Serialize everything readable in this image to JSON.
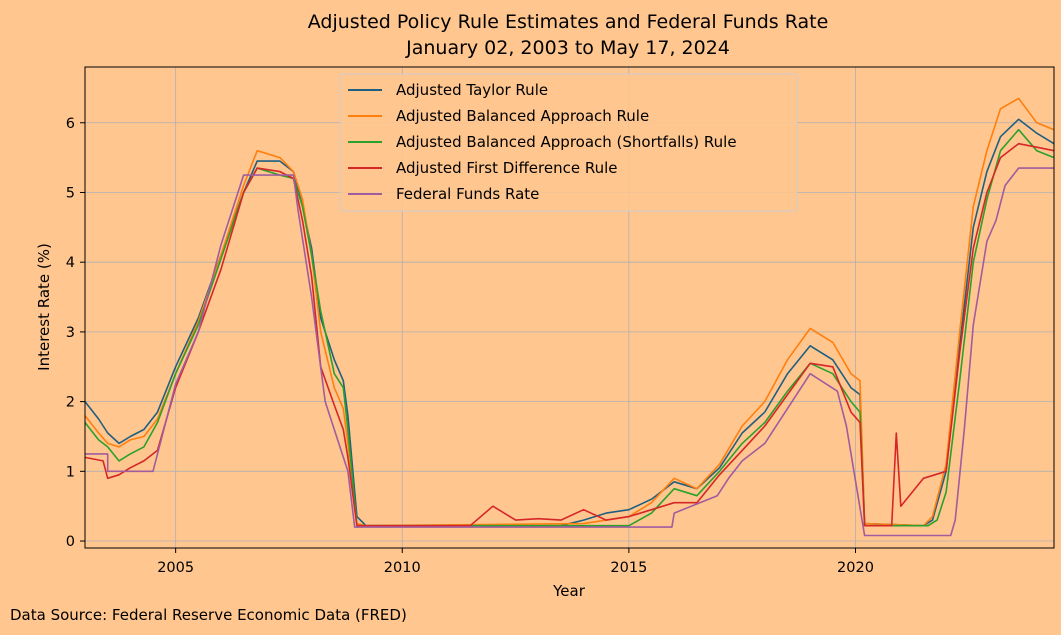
{
  "chart_data": {
    "type": "line",
    "title": "Adjusted Policy Rule Estimates and Federal Funds Rate",
    "subtitle": "January 02, 2003 to May 17, 2024",
    "xlabel": "Year",
    "ylabel": "Interest Rate (%)",
    "xlim": [
      2003.0,
      2024.38
    ],
    "ylim": [
      -0.1,
      6.8
    ],
    "x_ticks": [
      2005,
      2010,
      2015,
      2020
    ],
    "y_ticks": [
      0,
      1,
      2,
      3,
      4,
      5,
      6
    ],
    "grid": true,
    "legend_position": "top-center",
    "background_color": "#ffc68f",
    "series": [
      {
        "name": "Adjusted Taylor Rule",
        "color": "#1f5f80",
        "points": [
          [
            2003.0,
            2.0
          ],
          [
            2003.3,
            1.75
          ],
          [
            2003.5,
            1.55
          ],
          [
            2003.75,
            1.4
          ],
          [
            2004.0,
            1.5
          ],
          [
            2004.3,
            1.6
          ],
          [
            2004.6,
            1.85
          ],
          [
            2005.0,
            2.5
          ],
          [
            2005.5,
            3.2
          ],
          [
            2006.0,
            4.1
          ],
          [
            2006.5,
            5.0
          ],
          [
            2006.8,
            5.45
          ],
          [
            2007.3,
            5.45
          ],
          [
            2007.6,
            5.3
          ],
          [
            2007.8,
            4.8
          ],
          [
            2008.0,
            4.2
          ],
          [
            2008.2,
            3.2
          ],
          [
            2008.5,
            2.6
          ],
          [
            2008.7,
            2.3
          ],
          [
            2008.8,
            1.8
          ],
          [
            2009.0,
            0.35
          ],
          [
            2009.2,
            0.22
          ],
          [
            2013.5,
            0.22
          ],
          [
            2014.0,
            0.3
          ],
          [
            2014.5,
            0.4
          ],
          [
            2015.0,
            0.45
          ],
          [
            2015.5,
            0.6
          ],
          [
            2016.0,
            0.85
          ],
          [
            2016.5,
            0.75
          ],
          [
            2017.0,
            1.05
          ],
          [
            2017.5,
            1.55
          ],
          [
            2018.0,
            1.85
          ],
          [
            2018.5,
            2.4
          ],
          [
            2019.0,
            2.8
          ],
          [
            2019.5,
            2.6
          ],
          [
            2019.9,
            2.2
          ],
          [
            2020.1,
            2.1
          ],
          [
            2020.2,
            0.25
          ],
          [
            2021.5,
            0.22
          ],
          [
            2021.7,
            0.3
          ],
          [
            2022.0,
            1.0
          ],
          [
            2022.3,
            2.8
          ],
          [
            2022.6,
            4.5
          ],
          [
            2022.9,
            5.3
          ],
          [
            2023.2,
            5.8
          ],
          [
            2023.6,
            6.05
          ],
          [
            2024.0,
            5.85
          ],
          [
            2024.38,
            5.7
          ]
        ]
      },
      {
        "name": "Adjusted Balanced Approach Rule",
        "color": "#ff7f0e",
        "points": [
          [
            2003.0,
            1.8
          ],
          [
            2003.3,
            1.55
          ],
          [
            2003.5,
            1.4
          ],
          [
            2003.75,
            1.35
          ],
          [
            2004.0,
            1.45
          ],
          [
            2004.3,
            1.5
          ],
          [
            2004.6,
            1.75
          ],
          [
            2005.0,
            2.4
          ],
          [
            2005.5,
            3.15
          ],
          [
            2006.0,
            4.1
          ],
          [
            2006.5,
            5.1
          ],
          [
            2006.8,
            5.6
          ],
          [
            2007.3,
            5.5
          ],
          [
            2007.6,
            5.3
          ],
          [
            2007.8,
            4.9
          ],
          [
            2008.0,
            4.1
          ],
          [
            2008.2,
            3.0
          ],
          [
            2008.5,
            2.2
          ],
          [
            2008.7,
            1.9
          ],
          [
            2008.8,
            1.4
          ],
          [
            2009.0,
            0.25
          ],
          [
            2009.2,
            0.22
          ],
          [
            2014.0,
            0.25
          ],
          [
            2014.5,
            0.3
          ],
          [
            2015.0,
            0.35
          ],
          [
            2015.5,
            0.55
          ],
          [
            2016.0,
            0.9
          ],
          [
            2016.5,
            0.75
          ],
          [
            2017.0,
            1.1
          ],
          [
            2017.5,
            1.65
          ],
          [
            2018.0,
            2.0
          ],
          [
            2018.5,
            2.6
          ],
          [
            2019.0,
            3.05
          ],
          [
            2019.5,
            2.85
          ],
          [
            2019.9,
            2.4
          ],
          [
            2020.1,
            2.3
          ],
          [
            2020.2,
            0.25
          ],
          [
            2021.5,
            0.22
          ],
          [
            2021.7,
            0.35
          ],
          [
            2022.0,
            1.1
          ],
          [
            2022.3,
            3.0
          ],
          [
            2022.6,
            4.8
          ],
          [
            2022.9,
            5.6
          ],
          [
            2023.2,
            6.2
          ],
          [
            2023.6,
            6.35
          ],
          [
            2024.0,
            6.0
          ],
          [
            2024.38,
            5.9
          ]
        ]
      },
      {
        "name": "Adjusted Balanced Approach (Shortfalls) Rule",
        "color": "#2ca02c",
        "points": [
          [
            2003.0,
            1.7
          ],
          [
            2003.3,
            1.45
          ],
          [
            2003.5,
            1.35
          ],
          [
            2003.75,
            1.15
          ],
          [
            2004.0,
            1.25
          ],
          [
            2004.3,
            1.35
          ],
          [
            2004.6,
            1.7
          ],
          [
            2005.0,
            2.4
          ],
          [
            2005.5,
            3.1
          ],
          [
            2006.0,
            4.05
          ],
          [
            2006.5,
            5.0
          ],
          [
            2006.8,
            5.35
          ],
          [
            2007.3,
            5.25
          ],
          [
            2007.6,
            5.2
          ],
          [
            2007.8,
            4.8
          ],
          [
            2008.0,
            4.1
          ],
          [
            2008.2,
            3.3
          ],
          [
            2008.5,
            2.4
          ],
          [
            2008.7,
            2.2
          ],
          [
            2008.8,
            1.6
          ],
          [
            2009.0,
            0.22
          ],
          [
            2015.0,
            0.22
          ],
          [
            2015.5,
            0.4
          ],
          [
            2016.0,
            0.75
          ],
          [
            2016.5,
            0.65
          ],
          [
            2017.0,
            1.0
          ],
          [
            2017.5,
            1.4
          ],
          [
            2018.0,
            1.7
          ],
          [
            2018.5,
            2.15
          ],
          [
            2019.0,
            2.55
          ],
          [
            2019.5,
            2.4
          ],
          [
            2019.9,
            2.0
          ],
          [
            2020.1,
            1.85
          ],
          [
            2020.2,
            0.22
          ],
          [
            2021.6,
            0.22
          ],
          [
            2021.8,
            0.3
          ],
          [
            2022.0,
            0.7
          ],
          [
            2022.3,
            2.3
          ],
          [
            2022.6,
            4.0
          ],
          [
            2022.9,
            4.9
          ],
          [
            2023.2,
            5.6
          ],
          [
            2023.6,
            5.9
          ],
          [
            2024.0,
            5.6
          ],
          [
            2024.38,
            5.5
          ]
        ]
      },
      {
        "name": "Adjusted First Difference Rule",
        "color": "#d62728",
        "points": [
          [
            2003.0,
            1.2
          ],
          [
            2003.4,
            1.15
          ],
          [
            2003.5,
            0.9
          ],
          [
            2003.75,
            0.95
          ],
          [
            2004.0,
            1.05
          ],
          [
            2004.3,
            1.15
          ],
          [
            2004.6,
            1.3
          ],
          [
            2005.0,
            2.2
          ],
          [
            2005.5,
            3.0
          ],
          [
            2006.0,
            3.9
          ],
          [
            2006.5,
            5.0
          ],
          [
            2006.8,
            5.35
          ],
          [
            2007.3,
            5.3
          ],
          [
            2007.6,
            5.2
          ],
          [
            2007.8,
            4.6
          ],
          [
            2008.0,
            3.8
          ],
          [
            2008.2,
            2.5
          ],
          [
            2008.5,
            1.95
          ],
          [
            2008.7,
            1.6
          ],
          [
            2008.8,
            1.2
          ],
          [
            2009.0,
            0.22
          ],
          [
            2011.5,
            0.22
          ],
          [
            2012.0,
            0.5
          ],
          [
            2012.5,
            0.3
          ],
          [
            2013.0,
            0.32
          ],
          [
            2013.5,
            0.3
          ],
          [
            2014.0,
            0.45
          ],
          [
            2014.5,
            0.3
          ],
          [
            2015.0,
            0.35
          ],
          [
            2015.5,
            0.45
          ],
          [
            2016.0,
            0.55
          ],
          [
            2016.5,
            0.55
          ],
          [
            2017.0,
            0.95
          ],
          [
            2017.5,
            1.3
          ],
          [
            2018.0,
            1.65
          ],
          [
            2018.5,
            2.1
          ],
          [
            2019.0,
            2.55
          ],
          [
            2019.5,
            2.5
          ],
          [
            2019.9,
            1.85
          ],
          [
            2020.1,
            1.7
          ],
          [
            2020.2,
            0.22
          ],
          [
            2020.8,
            0.22
          ],
          [
            2020.9,
            1.55
          ],
          [
            2021.0,
            0.5
          ],
          [
            2021.5,
            0.9
          ],
          [
            2022.0,
            1.0
          ],
          [
            2022.3,
            2.7
          ],
          [
            2022.6,
            4.2
          ],
          [
            2022.9,
            5.0
          ],
          [
            2023.2,
            5.5
          ],
          [
            2023.6,
            5.7
          ],
          [
            2024.0,
            5.65
          ],
          [
            2024.38,
            5.6
          ]
        ]
      },
      {
        "name": "Federal Funds Rate",
        "color": "#a05c9f",
        "points": [
          [
            2003.0,
            1.25
          ],
          [
            2003.5,
            1.25
          ],
          [
            2003.5,
            1.0
          ],
          [
            2004.5,
            1.0
          ],
          [
            2004.6,
            1.25
          ],
          [
            2005.0,
            2.25
          ],
          [
            2005.5,
            3.0
          ],
          [
            2006.0,
            4.25
          ],
          [
            2006.5,
            5.25
          ],
          [
            2007.6,
            5.25
          ],
          [
            2007.7,
            4.75
          ],
          [
            2008.0,
            3.5
          ],
          [
            2008.1,
            3.0
          ],
          [
            2008.3,
            2.0
          ],
          [
            2008.8,
            1.0
          ],
          [
            2008.95,
            0.2
          ],
          [
            2015.95,
            0.2
          ],
          [
            2016.0,
            0.4
          ],
          [
            2016.95,
            0.65
          ],
          [
            2017.2,
            0.9
          ],
          [
            2017.5,
            1.15
          ],
          [
            2018.0,
            1.4
          ],
          [
            2018.5,
            1.9
          ],
          [
            2019.0,
            2.4
          ],
          [
            2019.6,
            2.15
          ],
          [
            2019.8,
            1.65
          ],
          [
            2020.2,
            0.08
          ],
          [
            2022.1,
            0.08
          ],
          [
            2022.2,
            0.3
          ],
          [
            2022.4,
            1.6
          ],
          [
            2022.6,
            3.1
          ],
          [
            2022.9,
            4.3
          ],
          [
            2023.1,
            4.6
          ],
          [
            2023.3,
            5.1
          ],
          [
            2023.6,
            5.35
          ],
          [
            2024.38,
            5.35
          ]
        ]
      }
    ]
  },
  "footer": {
    "source_text": "Data Source: Federal Reserve Economic Data (FRED)"
  }
}
